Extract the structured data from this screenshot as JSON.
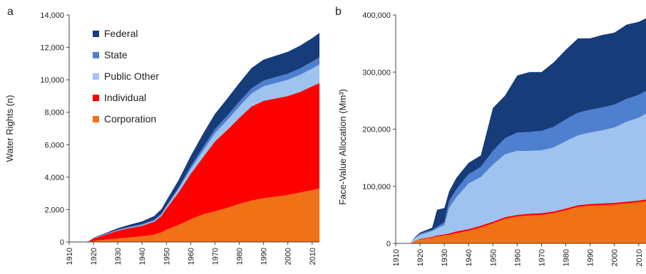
{
  "chart_data": [
    {
      "type": "area",
      "panel_label": "a",
      "ylabel": "Water Rights (n)",
      "stacked": true,
      "xlim": [
        1910,
        2013
      ],
      "ylim": [
        0,
        14000
      ],
      "y_ticks": [
        "0",
        "2,000",
        "4,000",
        "6,000",
        "8,000",
        "10,000",
        "12,000",
        "14,000"
      ],
      "x_ticks": [
        "1910",
        "1920",
        "1930",
        "1940",
        "1950",
        "1960",
        "1970",
        "1980",
        "1990",
        "2000",
        "2010"
      ],
      "legend_position": "top-left",
      "x": [
        1910,
        1915,
        1918,
        1920,
        1925,
        1930,
        1935,
        1940,
        1945,
        1948,
        1950,
        1955,
        1960,
        1965,
        1970,
        1975,
        1980,
        1985,
        1990,
        1995,
        2000,
        2005,
        2010,
        2013
      ],
      "series": [
        {
          "name": "Corporation",
          "color": "#f07116",
          "values": [
            0,
            0,
            10,
            60,
            150,
            220,
            280,
            350,
            450,
            600,
            750,
            1050,
            1400,
            1700,
            1900,
            2100,
            2350,
            2550,
            2700,
            2800,
            2900,
            3050,
            3200,
            3300
          ]
        },
        {
          "name": "Individual",
          "color": "#ff0000",
          "values": [
            0,
            0,
            20,
            150,
            300,
            480,
            580,
            650,
            800,
            1000,
            1300,
            2000,
            2800,
            3500,
            4300,
            4800,
            5300,
            5800,
            6000,
            6050,
            6100,
            6200,
            6400,
            6500
          ]
        },
        {
          "name": "Public Other",
          "color": "#9ec3ef",
          "values": [
            0,
            0,
            0,
            10,
            20,
            30,
            40,
            50,
            60,
            80,
            100,
            200,
            300,
            400,
            500,
            600,
            700,
            800,
            900,
            950,
            1000,
            1050,
            1100,
            1150
          ]
        },
        {
          "name": "State",
          "color": "#4f7fcf",
          "values": [
            0,
            0,
            0,
            10,
            20,
            30,
            40,
            50,
            60,
            70,
            80,
            100,
            150,
            200,
            250,
            280,
            300,
            320,
            350,
            370,
            380,
            400,
            420,
            440
          ]
        },
        {
          "name": "Federal",
          "color": "#173c7a",
          "values": [
            0,
            0,
            10,
            30,
            60,
            90,
            130,
            170,
            230,
            280,
            320,
            450,
            650,
            850,
            950,
            1050,
            1150,
            1250,
            1300,
            1320,
            1350,
            1400,
            1450,
            1500
          ]
        }
      ]
    },
    {
      "type": "area",
      "panel_label": "b",
      "ylabel": "Face-Value Allocation (Mm³)",
      "stacked": true,
      "xlim": [
        1910,
        2013
      ],
      "ylim": [
        0,
        400000
      ],
      "y_ticks": [
        "0",
        "100,000",
        "200,000",
        "300,000",
        "400,000"
      ],
      "x_ticks": [
        "1910",
        "1920",
        "1930",
        "1940",
        "1950",
        "1960",
        "1970",
        "1980",
        "1990",
        "2000",
        "2010"
      ],
      "x": [
        1910,
        1916,
        1918,
        1920,
        1925,
        1927,
        1930,
        1932,
        1935,
        1940,
        1945,
        1950,
        1955,
        1960,
        1965,
        1970,
        1975,
        1980,
        1985,
        1990,
        1995,
        2000,
        2005,
        2010,
        2013
      ],
      "series": [
        {
          "name": "Corporation",
          "color": "#f07116",
          "values": [
            0,
            0,
            4000,
            7000,
            10000,
            12000,
            14000,
            15000,
            18000,
            22000,
            28000,
            35000,
            43000,
            47000,
            49000,
            50000,
            53000,
            58000,
            64000,
            66000,
            67000,
            68000,
            70000,
            72000,
            74000
          ]
        },
        {
          "name": "Individual",
          "color": "#ff0000",
          "values": [
            0,
            0,
            500,
            1000,
            1500,
            2000,
            2000,
            2500,
            3000,
            3000,
            3000,
            3000,
            3000,
            3000,
            3000,
            3000,
            3000,
            3000,
            3000,
            3000,
            3000,
            3000,
            3000,
            3000,
            3000
          ]
        },
        {
          "name": "Public Other",
          "color": "#9ec3ef",
          "values": [
            0,
            0,
            5000,
            7000,
            10000,
            12000,
            16000,
            45000,
            60000,
            80000,
            85000,
            100000,
            110000,
            112000,
            110000,
            110000,
            112000,
            118000,
            122000,
            125000,
            128000,
            132000,
            140000,
            145000,
            150000
          ]
        },
        {
          "name": "State",
          "color": "#4f7fcf",
          "values": [
            0,
            0,
            1000,
            2000,
            2000,
            3000,
            5000,
            12000,
            14000,
            16000,
            18000,
            24000,
            28000,
            32000,
            33000,
            34000,
            36000,
            38000,
            40000,
            40000,
            40000,
            40000,
            40000,
            40000,
            40000
          ]
        },
        {
          "name": "Federal",
          "color": "#173c7a",
          "values": [
            0,
            0,
            1000,
            2000,
            4000,
            30000,
            25000,
            17000,
            20000,
            20000,
            20000,
            75000,
            75000,
            100000,
            105000,
            103000,
            113000,
            122000,
            130000,
            125000,
            127000,
            126000,
            130000,
            128000,
            127000
          ]
        }
      ]
    }
  ]
}
